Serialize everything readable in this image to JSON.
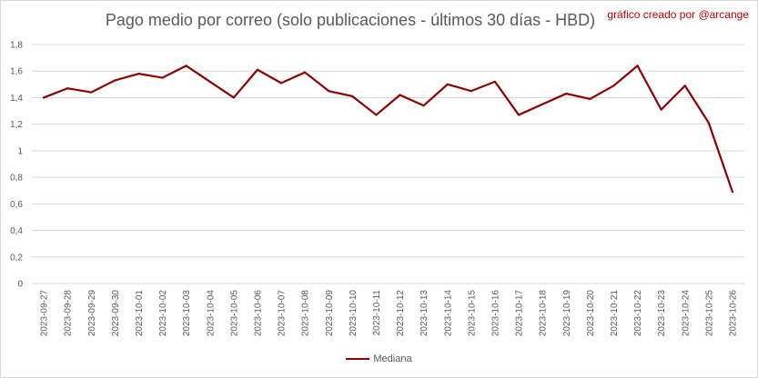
{
  "chart_data": {
    "type": "line",
    "title": "Pago medio por correo (solo publicaciones - últimos 30 días - HBD)",
    "subtitle": "gráfico creado por @arcange",
    "xlabel": "",
    "ylabel": "",
    "ylim": [
      0,
      1.8
    ],
    "yticks": [
      "0",
      "0,2",
      "0,4",
      "0,6",
      "0,8",
      "1",
      "1,2",
      "1,4",
      "1,6",
      "1,8"
    ],
    "grid": true,
    "legend_position": "bottom",
    "x": [
      "2023-09-27",
      "2023-09-28",
      "2023-09-29",
      "2023-09-30",
      "2023-10-01",
      "2023-10-02",
      "2023-10-03",
      "2023-10-04",
      "2023-10-05",
      "2023-10-06",
      "2023-10-07",
      "2023-10-08",
      "2023-10-09",
      "2023-10-10",
      "2023-10-11",
      "2023-10-12",
      "2023-10-13",
      "2023-10-14",
      "2023-10-15",
      "2023-10-16",
      "2023-10-17",
      "2023-10-18",
      "2023-10-19",
      "2023-10-20",
      "2023-10-21",
      "2023-10-22",
      "2023-10-23",
      "2023-10-24",
      "2023-10-25",
      "2023-10-26"
    ],
    "series": [
      {
        "name": "Mediana",
        "color": "#8b0000",
        "values": [
          1.4,
          1.47,
          1.44,
          1.53,
          1.58,
          1.55,
          1.64,
          1.52,
          1.4,
          1.61,
          1.51,
          1.59,
          1.45,
          1.41,
          1.27,
          1.42,
          1.34,
          1.5,
          1.45,
          1.52,
          1.27,
          1.35,
          1.43,
          1.39,
          1.49,
          1.64,
          1.31,
          1.49,
          1.21,
          0.69
        ]
      }
    ]
  }
}
